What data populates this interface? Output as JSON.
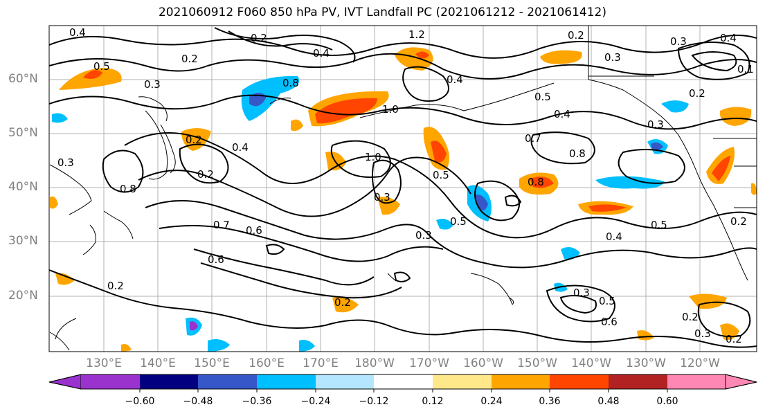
{
  "title": "2021060912 F060 850 hPa PV, IVT Landfall PC (2021061212 - 2021061412)",
  "lat_labels": [
    "60°N",
    "50°N",
    "40°N",
    "30°N",
    "20°N"
  ],
  "lon_labels": [
    "130°E",
    "140°E",
    "150°E",
    "160°E",
    "170°E",
    "180°W",
    "170°W",
    "160°W",
    "150°W",
    "140°W",
    "130°W",
    "120°W"
  ],
  "colorbar": {
    "ticks": [
      "−0.60",
      "−0.48",
      "−0.36",
      "−0.24",
      "−0.12",
      "0.12",
      "0.24",
      "0.36",
      "0.48",
      "0.60"
    ],
    "colors": [
      "#9a32cd",
      "#000080",
      "#3657c8",
      "#00bfff",
      "#b4e6ff",
      "#ffffff",
      "#ffe88a",
      "#ffa500",
      "#ff4500",
      "#b22222",
      "#ff87b4"
    ]
  },
  "contour_labels": [
    "0.4",
    "0.2",
    "0.5",
    "0.3",
    "0.8",
    "1.2",
    "0.4",
    "0.2",
    "0.3",
    "0.4",
    "0.2",
    "0.1",
    "0.3",
    "0.2",
    "0.4",
    "1.0",
    "0.5",
    "0.4",
    "0.7",
    "0.8",
    "0.3",
    "0.4",
    "0.2",
    "0.2",
    "0.8",
    "1.0",
    "0.5",
    "0.3",
    "0.8",
    "0.3",
    "0.5",
    "0.7",
    "0.6",
    "0.3",
    "0.4",
    "0.5",
    "0.6",
    "0.2",
    "0.2",
    "0.3",
    "0.5",
    "0.6",
    "0.2",
    "0.3",
    "0.2",
    "0.2"
  ],
  "colors": {
    "land_outline": "#000000",
    "grid": "#b0b0b0",
    "axis_label": "#808080"
  }
}
